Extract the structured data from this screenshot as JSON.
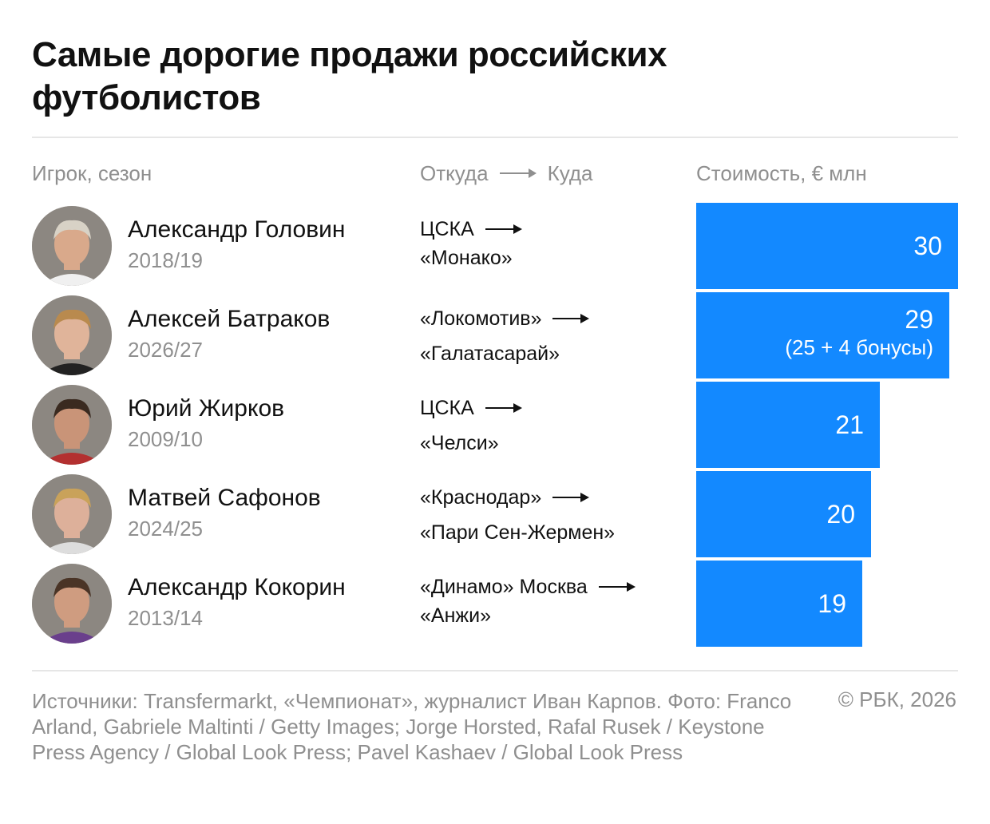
{
  "title": "Самые дорогие продажи российских футболистов",
  "headers": {
    "player": "Игрок, сезон",
    "from": "Откуда",
    "to": "Куда",
    "cost": "Стоимость, € млн"
  },
  "colors": {
    "bar": "#1389ff",
    "muted_text": "#8f8f8f",
    "text": "#111111",
    "rule": "#e6e6e6"
  },
  "chart_data": {
    "type": "bar",
    "orientation": "horizontal",
    "title": "Самые дорогие продажи российских футболистов",
    "xlabel": "Стоимость, € млн",
    "xlim": [
      0,
      30
    ],
    "categories": [
      "Александр Головин",
      "Алексей Батраков",
      "Юрий Жирков",
      "Матвей Сафонов",
      "Александр Кокорин"
    ],
    "values": [
      30,
      29,
      21,
      20,
      19
    ],
    "rows": [
      {
        "name": "Александр Головин",
        "season": "2018/19",
        "from": "ЦСКА",
        "to": "«Монако»",
        "value": 30,
        "value_label": "30",
        "note": ""
      },
      {
        "name": "Алексей Батраков",
        "season": "2026/27",
        "from": "«Локомотив»",
        "to": "«Галатасарай»",
        "value": 29,
        "value_label": "29",
        "note": "(25 + 4 бонусы)"
      },
      {
        "name": "Юрий Жирков",
        "season": "2009/10",
        "from": "ЦСКА",
        "to": "«Челси»",
        "value": 21,
        "value_label": "21",
        "note": ""
      },
      {
        "name": "Матвей Сафонов",
        "season": "2024/25",
        "from": "«Краснодар»",
        "to": "«Пари Сен-Жермен»",
        "value": 20,
        "value_label": "20",
        "note": ""
      },
      {
        "name": "Александр Кокорин",
        "season": "2013/14",
        "from": "«Динамо» Москва",
        "to": "«Анжи»",
        "value": 19,
        "value_label": "19",
        "note": ""
      }
    ]
  },
  "footer": {
    "sources": "Источники: Transfermarkt, «Чемпионат», журналист Иван Карпов. Фото: Franco Arland, Gabriele Maltinti / Getty Images; Jorge Horsted, Rafal Rusek / Keystone Press Agency / Global Look Press; Pavel Kashaev / Global Look Press",
    "copyright": "© РБК, 2026"
  }
}
